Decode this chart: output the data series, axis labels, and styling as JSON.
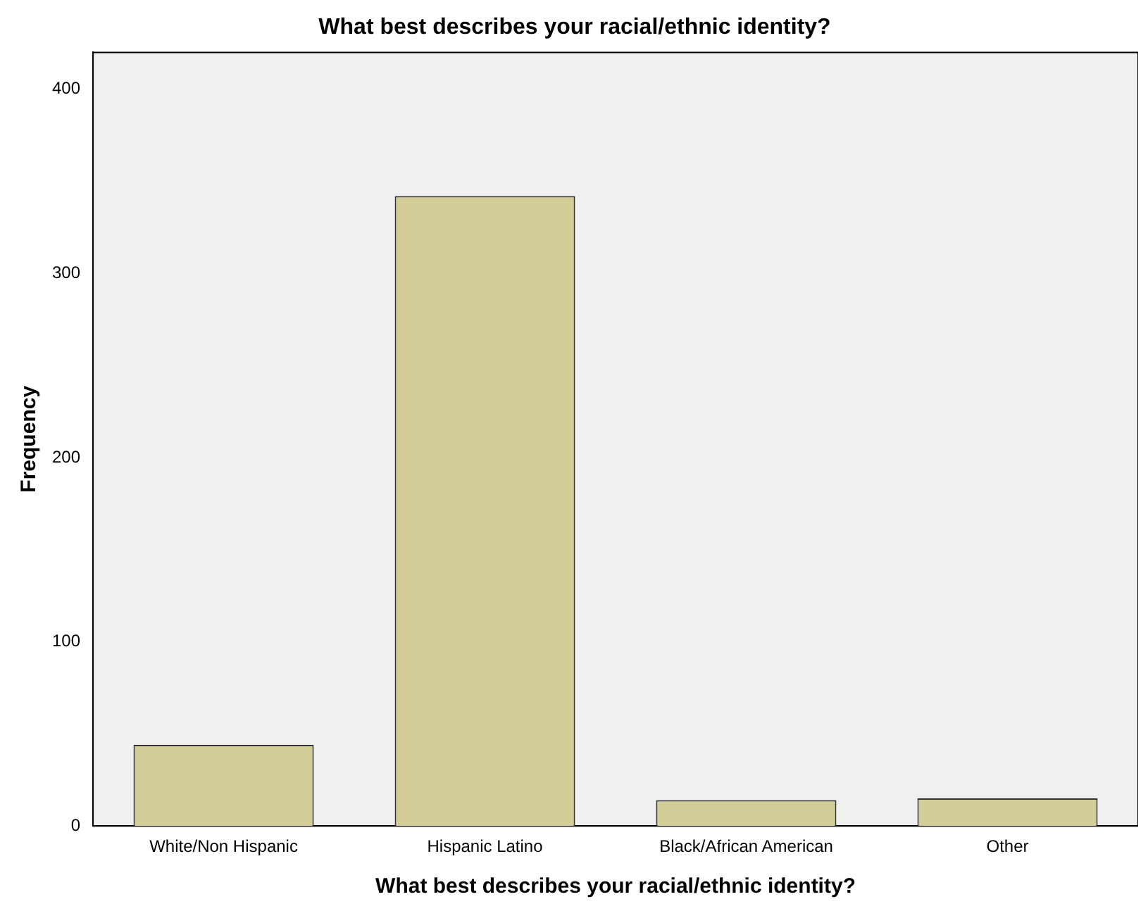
{
  "chart_data": {
    "type": "bar",
    "title": "What best describes your racial/ethnic identity?",
    "xlabel": "What best describes your racial/ethnic identity?",
    "ylabel": "Frequency",
    "categories": [
      "White/Non Hispanic",
      "Hispanic Latino",
      "Black/African American",
      "Other"
    ],
    "values": [
      44,
      342,
      14,
      15
    ],
    "color": "#d3ce97",
    "ylim": [
      0,
      420
    ],
    "yticks": [
      0,
      100,
      200,
      300,
      400
    ],
    "grid": false,
    "legend": false
  }
}
